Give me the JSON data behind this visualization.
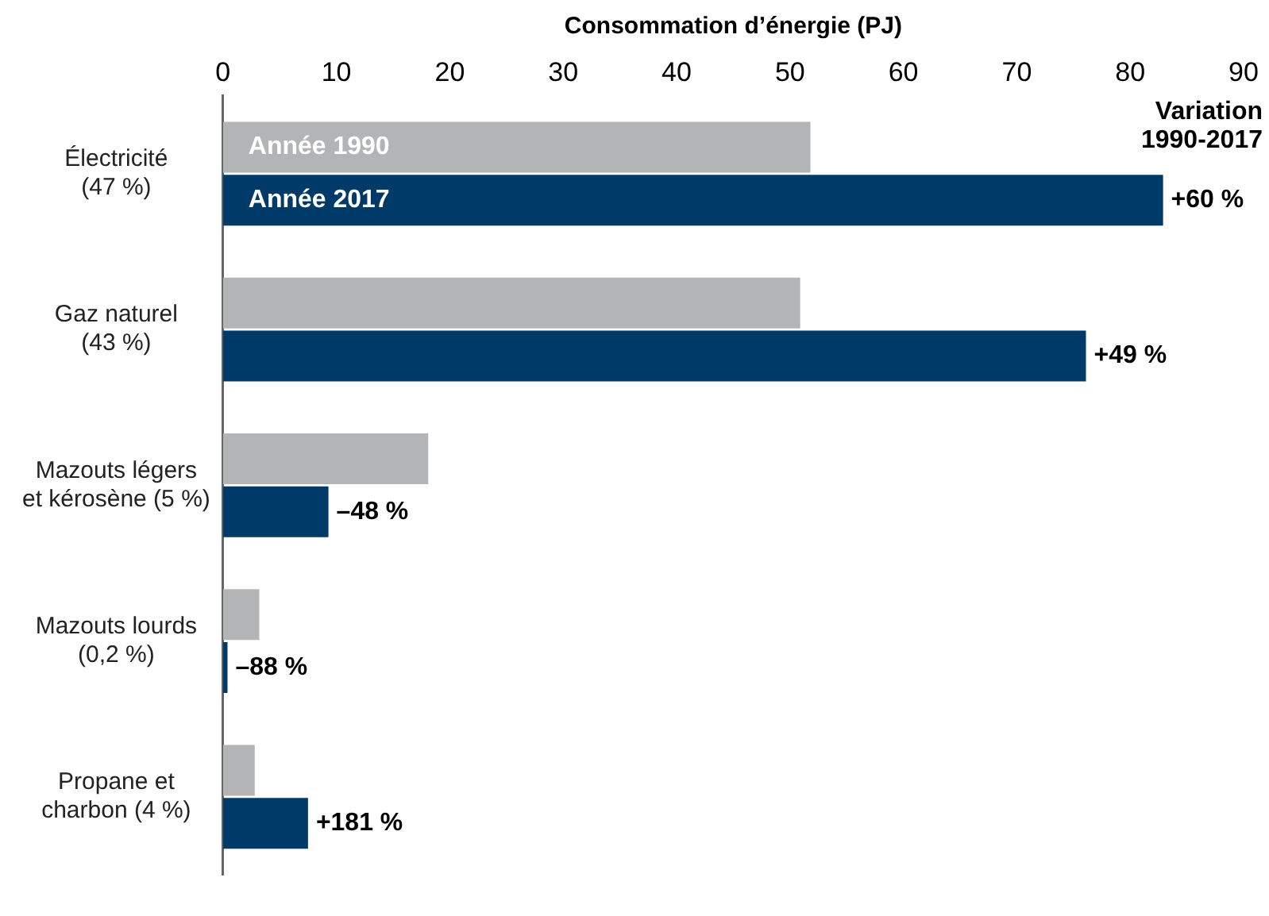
{
  "chart_data": {
    "type": "bar",
    "orientation": "horizontal",
    "xlabel": "Consommation d’énergie (PJ)",
    "categories": [
      "Électricité\n(47 %)",
      "Gaz naturel\n(43 %)",
      "Mazouts légers\net kérosène (5 %)",
      "Mazouts lourds\n(0,2 %)",
      "Propane et\ncharbon (4 %)"
    ],
    "series": [
      {
        "name": "Année 1990",
        "color": "#b3b4b6",
        "values": [
          51.8,
          50.9,
          18.1,
          3.2,
          2.8
        ]
      },
      {
        "name": "Année 2017",
        "color": "#003a69",
        "values": [
          82.9,
          76.1,
          9.3,
          0.4,
          7.5
        ]
      }
    ],
    "xlim": [
      0,
      90
    ],
    "xticks": [
      0,
      10,
      20,
      30,
      40,
      50,
      60,
      70,
      80,
      90
    ],
    "grid": false,
    "annotations": [
      "Variation\n1990-2017",
      {
        "text": "+60 %",
        "x": 82.9,
        "y": "Électricité\n(47 %)"
      },
      {
        "text": "+49 %",
        "x": 76.1,
        "y": "Gaz naturel\n(43 %)"
      },
      {
        "text": "–48 %",
        "x": 9.3,
        "y": "Mazouts légers\net kérosène (5 %)"
      },
      {
        "text": "–88 %",
        "x": 0.4,
        "y": "Mazouts lourds\n(0,2 %)"
      },
      {
        "text": "+181 %",
        "x": 7.5,
        "y": "Propane et\ncharbon (4 %)"
      }
    ]
  }
}
